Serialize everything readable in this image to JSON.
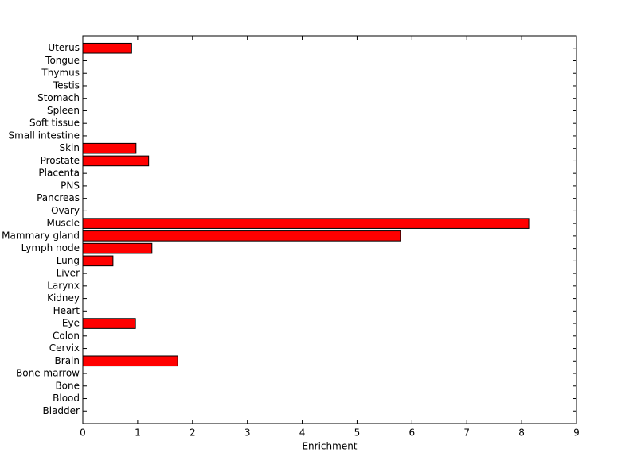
{
  "chart_data": {
    "type": "barh",
    "xlabel": "Enrichment",
    "categories": [
      "Bladder",
      "Blood",
      "Bone",
      "Bone marrow",
      "Brain",
      "Cervix",
      "Colon",
      "Eye",
      "Heart",
      "Kidney",
      "Larynx",
      "Liver",
      "Lung",
      "Lymph node",
      "Mammary gland",
      "Muscle",
      "Ovary",
      "Pancreas",
      "PNS",
      "Placenta",
      "Prostate",
      "Skin",
      "Small intestine",
      "Soft tissue",
      "Spleen",
      "Stomach",
      "Testis",
      "Thymus",
      "Tongue",
      "Uterus"
    ],
    "values": [
      0,
      0,
      0,
      0,
      1.73,
      0,
      0,
      0.96,
      0,
      0,
      0,
      0,
      0.55,
      1.26,
      5.79,
      8.13,
      0,
      0,
      0,
      0,
      1.2,
      0.97,
      0,
      0,
      0,
      0,
      0,
      0,
      0,
      0.89
    ],
    "color": "#ff0000",
    "xlim": [
      0,
      9
    ],
    "xticks": [
      0,
      1,
      2,
      3,
      4,
      5,
      6,
      7,
      8,
      9
    ]
  }
}
